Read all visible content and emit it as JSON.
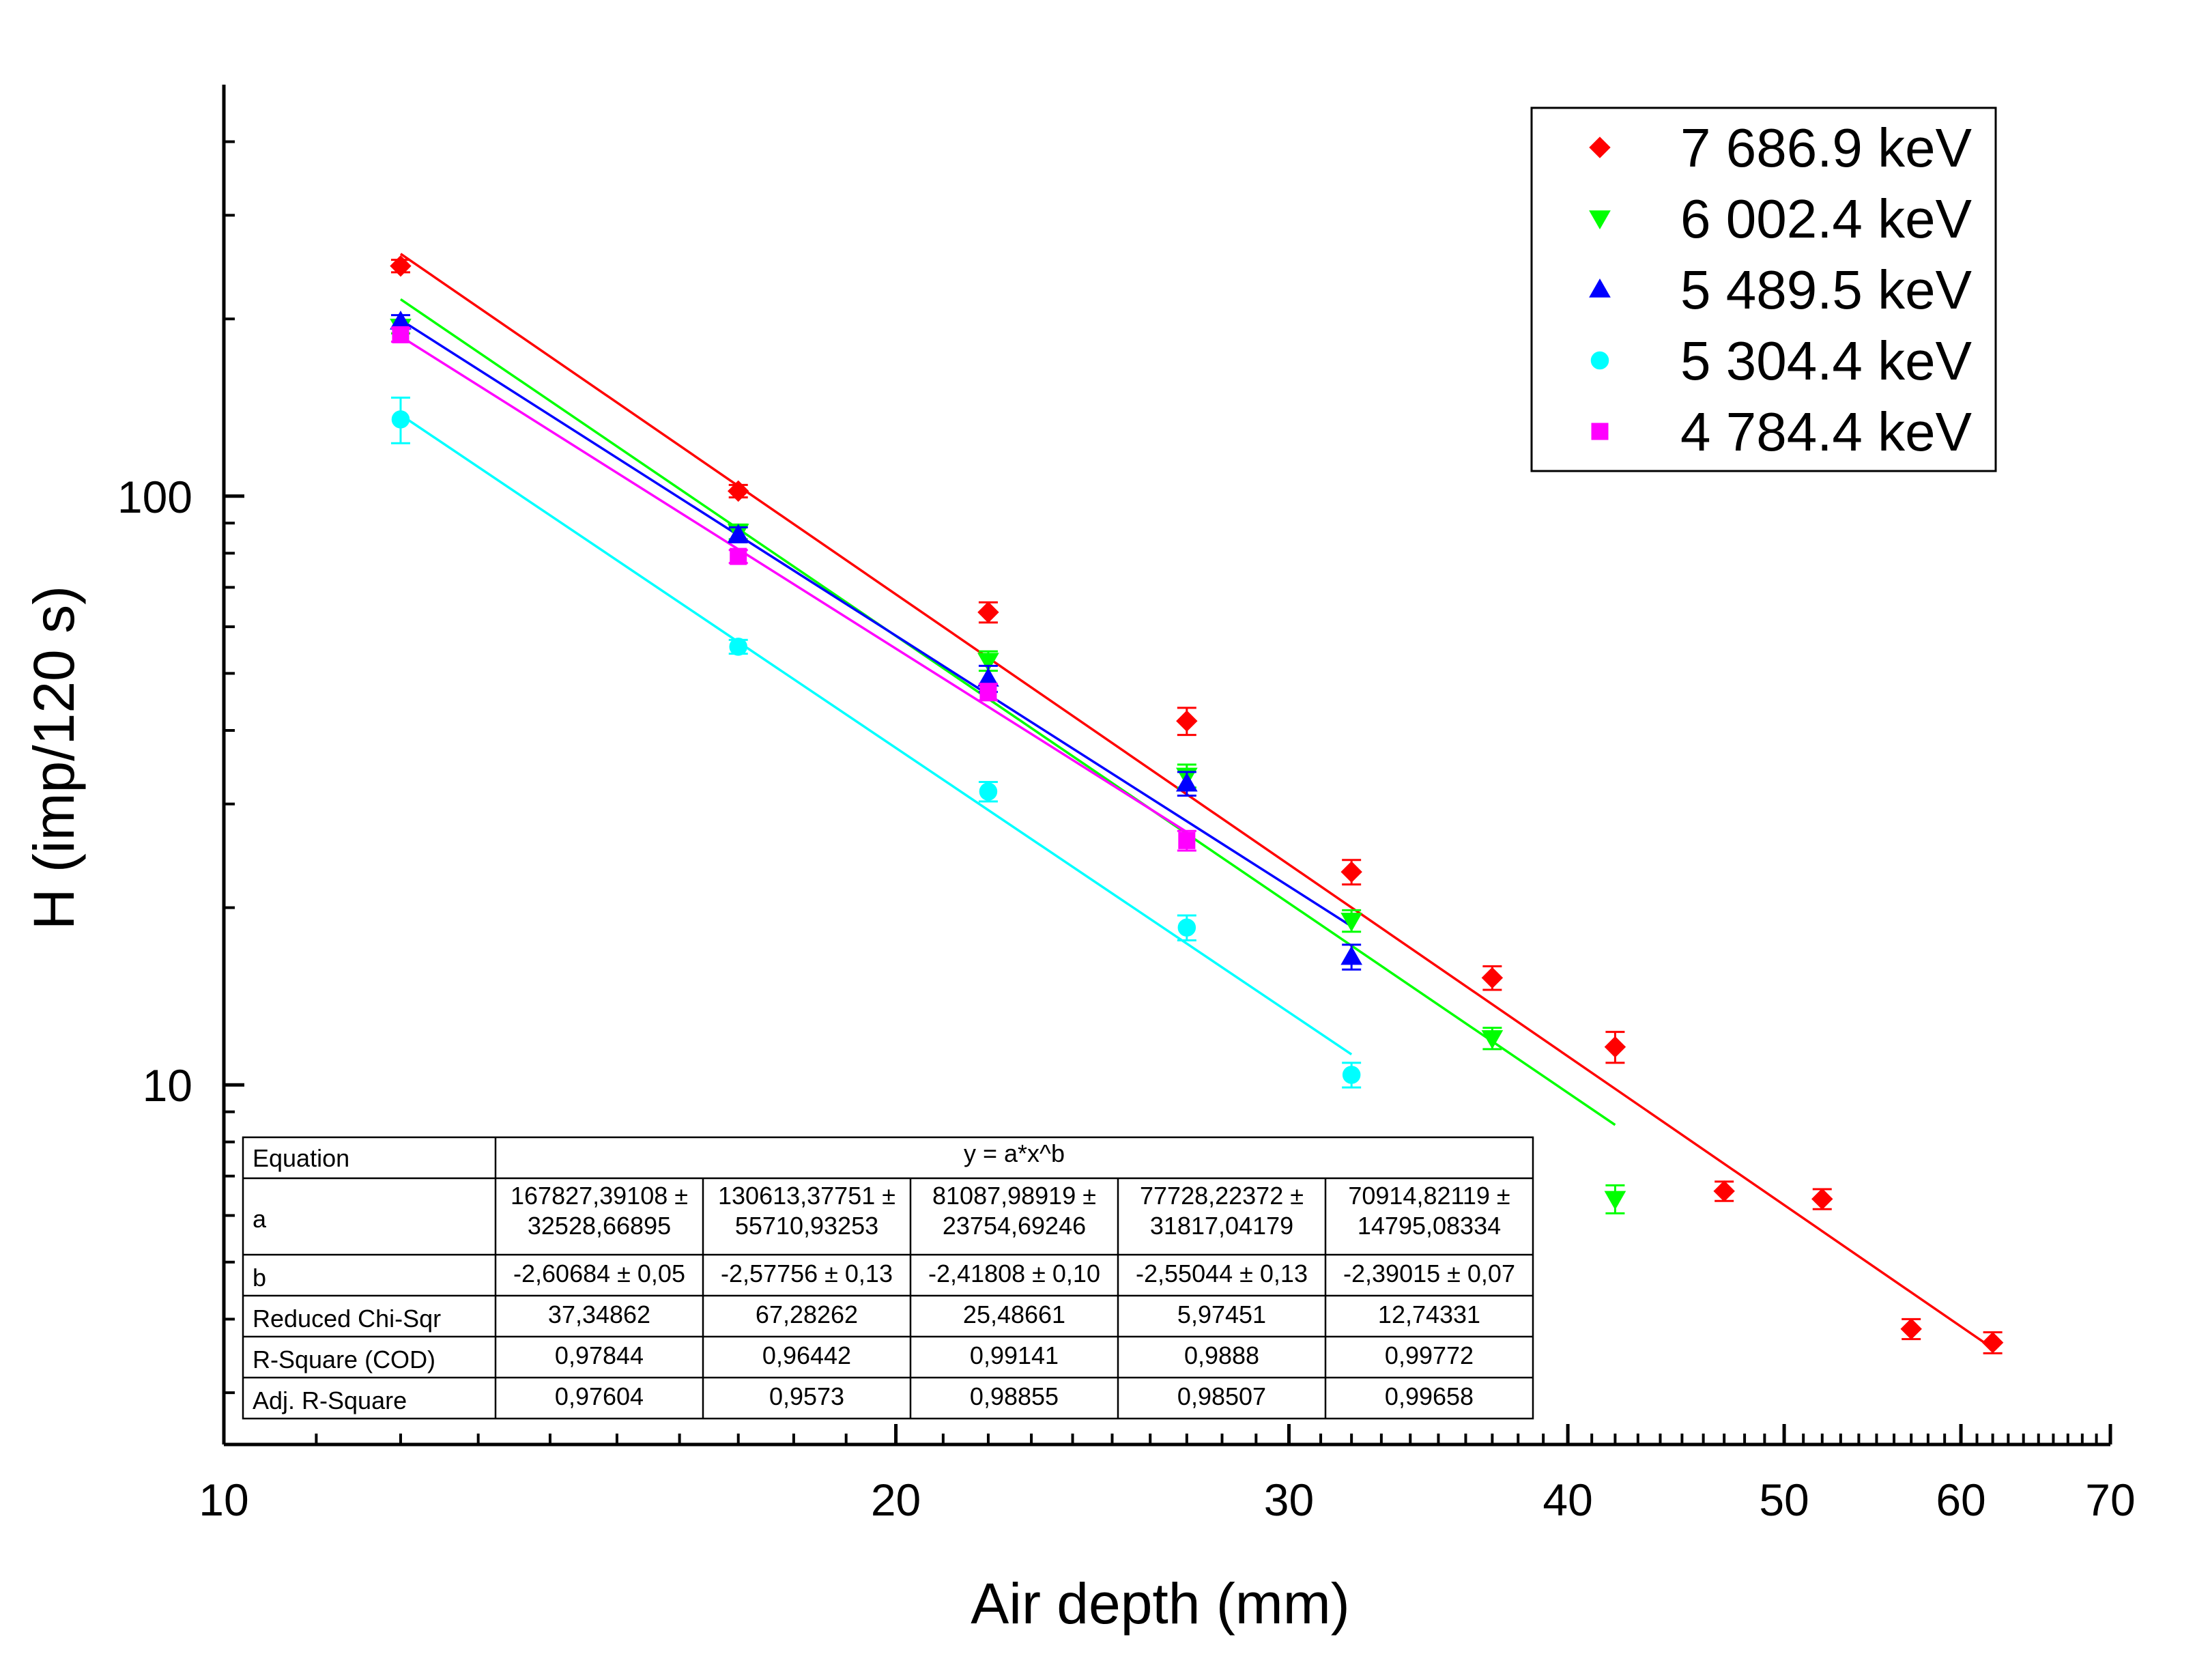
{
  "chart_data": {
    "type": "scatter",
    "xlabel": "Air depth (mm)",
    "ylabel": "H (imp/120 s)",
    "xscale": "log",
    "yscale": "log",
    "xlim": [
      10,
      70
    ],
    "ylim": [
      2.45,
      500
    ],
    "x_ticks": [
      10,
      20,
      30,
      40,
      50,
      60,
      70
    ],
    "x_tick_labels": [
      "10",
      "20",
      "30",
      "40",
      "50",
      "60",
      "70"
    ],
    "y_ticks": [
      10,
      100
    ],
    "y_tick_labels": [
      "10",
      "100"
    ],
    "grid": false,
    "legend_position": "top-right",
    "series": [
      {
        "name": "7 686.9 keV",
        "color": "#ff0000",
        "marker": "diamond",
        "x": [
          12,
          17,
          22,
          27,
          32,
          37,
          42,
          47,
          52,
          57,
          62
        ],
        "y": [
          246,
          102,
          63.5,
          41.5,
          23,
          15.2,
          11.6,
          6.6,
          6.4,
          3.85,
          3.65
        ],
        "yerr": [
          6,
          2.5,
          2.5,
          2.2,
          1.1,
          0.7,
          0.7,
          0.25,
          0.25,
          0.15,
          0.15
        ],
        "fit": {
          "a": 167827.39108,
          "b": -2.60684,
          "x_range": [
            12,
            62
          ]
        }
      },
      {
        "name": "6 002.4 keV",
        "color": "#00ff00",
        "marker": "triangle-down",
        "x": [
          12,
          17,
          22,
          27,
          32,
          37,
          42
        ],
        "y": [
          194,
          87,
          52.5,
          33.5,
          19,
          12,
          6.4
        ],
        "yerr": [
          5,
          2.5,
          2,
          1.5,
          0.8,
          0.5,
          0.35
        ],
        "fit": {
          "a": 130613.37751,
          "b": -2.57756,
          "x_range": [
            12,
            42
          ]
        }
      },
      {
        "name": "5 489.5 keV",
        "color": "#0000ff",
        "marker": "triangle-up",
        "x": [
          12,
          17,
          22,
          27,
          32
        ],
        "y": [
          198,
          86,
          49,
          32.5,
          16.5
        ],
        "yerr": [
          5,
          2.5,
          2.5,
          1.5,
          0.8
        ],
        "fit": {
          "a": 81087.98919,
          "b": -2.41808,
          "x_range": [
            12,
            32
          ]
        }
      },
      {
        "name": "5 304.4 keV",
        "color": "#00ffff",
        "marker": "circle",
        "x": [
          12,
          17,
          22,
          27,
          32
        ],
        "y": [
          135,
          55.5,
          31.5,
          18.5,
          10.4
        ],
        "yerr": [
          12,
          1.5,
          1.2,
          0.9,
          0.5
        ],
        "fit": {
          "a": 77728.22372,
          "b": -2.55044,
          "x_range": [
            12,
            32
          ]
        }
      },
      {
        "name": "4 784.4 keV",
        "color": "#ff00ff",
        "marker": "square",
        "x": [
          12,
          17,
          22,
          27
        ],
        "y": [
          188,
          79,
          46.5,
          26
        ],
        "yerr": [
          5,
          2,
          1.5,
          1
        ],
        "fit": {
          "a": 70914.82119,
          "b": -2.39015,
          "x_range": [
            12,
            27
          ]
        }
      }
    ],
    "fit_table": {
      "equation_label": "Equation",
      "equation": "y = a*x^b",
      "rows": [
        {
          "label": "a",
          "cells": [
            [
              "167827,39108 ±",
              "32528,66895"
            ],
            [
              "130613,37751 ±",
              "55710,93253"
            ],
            [
              "81087,98919 ±",
              "23754,69246"
            ],
            [
              "77728,22372 ±",
              "31817,04179"
            ],
            [
              "70914,82119 ±",
              "14795,08334"
            ]
          ]
        },
        {
          "label": "b",
          "cells": [
            [
              "-2,60684 ± 0,05"
            ],
            [
              "-2,57756 ± 0,13"
            ],
            [
              "-2,41808 ± 0,10"
            ],
            [
              "-2,55044 ± 0,13"
            ],
            [
              "-2,39015 ± 0,07"
            ]
          ]
        },
        {
          "label": "Reduced Chi-Sqr",
          "cells": [
            [
              "37,34862"
            ],
            [
              "67,28262"
            ],
            [
              "25,48661"
            ],
            [
              "5,97451"
            ],
            [
              "12,74331"
            ]
          ]
        },
        {
          "label": "R-Square (COD)",
          "cells": [
            [
              "0,97844"
            ],
            [
              "0,96442"
            ],
            [
              "0,99141"
            ],
            [
              "0,9888"
            ],
            [
              "0,99772"
            ]
          ]
        },
        {
          "label": "Adj. R-Square",
          "cells": [
            [
              "0,97604"
            ],
            [
              "0,9573"
            ],
            [
              "0,98855"
            ],
            [
              "0,98507"
            ],
            [
              "0,99658"
            ]
          ]
        }
      ]
    }
  }
}
